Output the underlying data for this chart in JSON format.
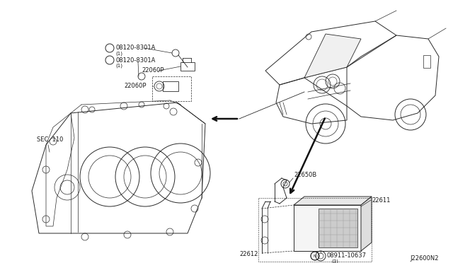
{
  "background_color": "#ffffff",
  "line_color": "#2a2a2a",
  "text_color": "#1a1a1a",
  "diagram_id": "J22600N2",
  "fig_width": 6.4,
  "fig_height": 3.72,
  "dpi": 100,
  "labels": {
    "part1a": "®08120-8301A",
    "part1a_note": "(1)",
    "part1b": "®08120-8301A",
    "part1b_note": "(1)",
    "part2a": "22060P",
    "part2b": "22060P",
    "sec110": "SEC. 110",
    "part3": "22650B",
    "part4": "22611",
    "part5": "22612",
    "part6": "®08911-10637",
    "part6_note": "(3)",
    "diag_id": "J22600N2"
  }
}
